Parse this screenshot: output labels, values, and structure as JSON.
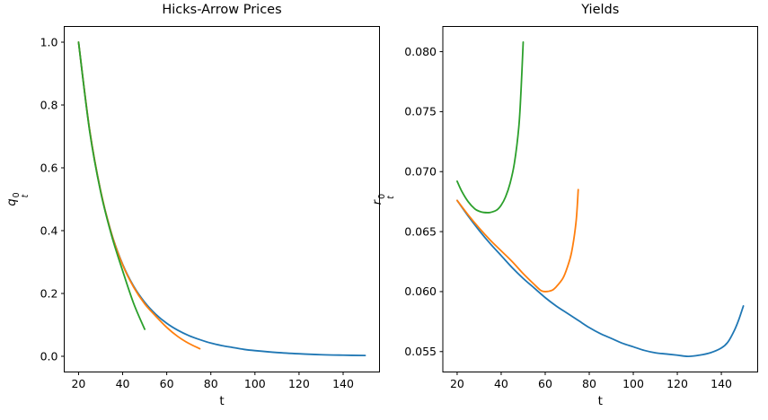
{
  "chart_data": [
    {
      "type": "line",
      "title": "Hicks-Arrow Prices",
      "xlabel": "t",
      "ylabel": {
        "base": "q",
        "sub": "t",
        "sup": "0"
      },
      "xlim": [
        13.5,
        156.5
      ],
      "ylim": [
        -0.05,
        1.05
      ],
      "xticks": [
        20,
        40,
        60,
        80,
        100,
        120,
        140
      ],
      "xtick_labels": [
        "20",
        "40",
        "60",
        "80",
        "100",
        "120",
        "140"
      ],
      "yticks": [
        0.0,
        0.2,
        0.4,
        0.6,
        0.8,
        1.0
      ],
      "ytick_labels": [
        "0.0",
        "0.2",
        "0.4",
        "0.6",
        "0.8",
        "1.0"
      ],
      "grid": false,
      "legend": "none",
      "series": [
        {
          "name": "blue",
          "color": "#1f77b4",
          "x": [
            20,
            25,
            30,
            35,
            40,
            45,
            50,
            55,
            60,
            65,
            70,
            75,
            80,
            85,
            90,
            95,
            100,
            110,
            120,
            130,
            140,
            150
          ],
          "y": [
            1.0,
            0.722,
            0.527,
            0.39,
            0.293,
            0.223,
            0.172,
            0.134,
            0.105,
            0.083,
            0.066,
            0.053,
            0.042,
            0.034,
            0.028,
            0.022,
            0.018,
            0.012,
            0.008,
            0.005,
            0.0035,
            0.0025
          ]
        },
        {
          "name": "orange",
          "color": "#ff7f0e",
          "x": [
            20,
            25,
            30,
            35,
            40,
            45,
            50,
            55,
            60,
            65,
            70,
            75
          ],
          "y": [
            1.0,
            0.722,
            0.527,
            0.389,
            0.291,
            0.22,
            0.167,
            0.128,
            0.092,
            0.063,
            0.041,
            0.024
          ]
        },
        {
          "name": "green",
          "color": "#2ca02c",
          "x": [
            20,
            25,
            30,
            35,
            40,
            45,
            50
          ],
          "y": [
            1.0,
            0.718,
            0.524,
            0.384,
            0.272,
            0.168,
            0.086
          ]
        }
      ]
    },
    {
      "type": "line",
      "title": "Yields",
      "xlabel": "t",
      "ylabel": {
        "base": "r",
        "sub": "t",
        "sup": "0"
      },
      "xlim": [
        13.5,
        156.5
      ],
      "ylim": [
        0.0533,
        0.0821
      ],
      "xticks": [
        20,
        40,
        60,
        80,
        100,
        120,
        140
      ],
      "xtick_labels": [
        "20",
        "40",
        "60",
        "80",
        "100",
        "120",
        "140"
      ],
      "yticks": [
        0.055,
        0.06,
        0.065,
        0.07,
        0.075,
        0.08
      ],
      "ytick_labels": [
        "0.055",
        "0.060",
        "0.065",
        "0.070",
        "0.075",
        "0.080"
      ],
      "grid": false,
      "legend": "none",
      "series": [
        {
          "name": "blue",
          "color": "#1f77b4",
          "x": [
            20,
            25,
            30,
            35,
            40,
            45,
            50,
            55,
            60,
            65,
            70,
            75,
            80,
            85,
            90,
            95,
            100,
            105,
            110,
            115,
            120,
            125,
            130,
            135,
            140,
            143,
            146,
            148,
            150
          ],
          "y": [
            0.0676,
            0.0663,
            0.0651,
            0.064,
            0.063,
            0.062,
            0.0611,
            0.0603,
            0.0595,
            0.0588,
            0.0582,
            0.0576,
            0.057,
            0.0565,
            0.0561,
            0.0557,
            0.0554,
            0.0551,
            0.0549,
            0.0548,
            0.0547,
            0.0546,
            0.0547,
            0.0549,
            0.0553,
            0.0558,
            0.0568,
            0.0577,
            0.0588
          ]
        },
        {
          "name": "orange",
          "color": "#ff7f0e",
          "x": [
            20,
            25,
            30,
            35,
            40,
            45,
            50,
            55,
            58,
            60,
            63,
            65,
            68,
            70,
            72,
            74,
            75
          ],
          "y": [
            0.0676,
            0.0664,
            0.0653,
            0.0643,
            0.0634,
            0.0625,
            0.0615,
            0.0606,
            0.0601,
            0.06,
            0.0601,
            0.0604,
            0.0611,
            0.062,
            0.0633,
            0.0658,
            0.0685
          ]
        },
        {
          "name": "green",
          "color": "#2ca02c",
          "x": [
            20,
            22,
            25,
            28,
            30,
            32,
            35,
            38,
            40,
            42,
            44,
            46,
            48,
            49,
            50
          ],
          "y": [
            0.0692,
            0.0684,
            0.0675,
            0.0669,
            0.0667,
            0.0666,
            0.0666,
            0.0668,
            0.0672,
            0.0679,
            0.069,
            0.0707,
            0.0737,
            0.0767,
            0.0808
          ]
        }
      ]
    }
  ]
}
